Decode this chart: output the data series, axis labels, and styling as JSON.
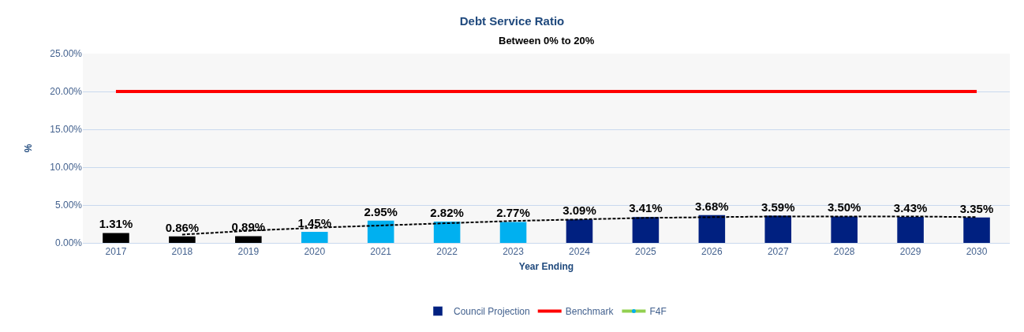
{
  "chart_data": {
    "type": "bar",
    "title": "Debt Service Ratio",
    "subtitle": "Between 0% to 20%",
    "xlabel": "Year Ending",
    "ylabel": "%",
    "categories": [
      "2017",
      "2018",
      "2019",
      "2020",
      "2021",
      "2022",
      "2023",
      "2024",
      "2025",
      "2026",
      "2027",
      "2028",
      "2029",
      "2030"
    ],
    "series": [
      {
        "name": "Council Projection",
        "color": "#002080",
        "colors": [
          "#000000",
          "#000000",
          "#000000",
          "#00b0f0",
          "#00b0f0",
          "#00b0f0",
          "#00b0f0",
          "#002080",
          "#002080",
          "#002080",
          "#002080",
          "#002080",
          "#002080",
          "#002080"
        ],
        "values": [
          1.31,
          0.86,
          0.89,
          1.45,
          2.95,
          2.82,
          2.77,
          3.09,
          3.41,
          3.68,
          3.59,
          3.5,
          3.43,
          3.35
        ],
        "value_labels": [
          "1.31%",
          "0.86%",
          "0.89%",
          "1.45%",
          "2.95%",
          "2.82%",
          "2.77%",
          "3.09%",
          "3.41%",
          "3.68%",
          "3.59%",
          "3.50%",
          "3.43%",
          "3.35%"
        ]
      },
      {
        "name": "Benchmark",
        "type": "line",
        "color": "#ff0000",
        "marker": "none",
        "values": [
          20,
          20,
          20,
          20,
          20,
          20,
          20,
          20,
          20,
          20,
          20,
          20,
          20,
          20
        ]
      },
      {
        "name": "F4F",
        "type": "line",
        "color": "#92d050",
        "marker": "circle",
        "values": [
          null,
          null,
          null,
          null,
          null,
          null,
          null,
          null,
          null,
          null,
          null,
          null,
          null,
          null
        ]
      },
      {
        "type": "line",
        "color": "#000000",
        "line_style": "dashed",
        "marker": "none",
        "values": [
          null,
          1.1,
          1.6,
          2.0,
          2.3,
          2.6,
          2.9,
          3.1,
          3.3,
          3.4,
          3.5,
          3.5,
          3.5,
          3.4
        ]
      }
    ],
    "ylim": [
      0,
      25
    ],
    "yticks": [
      {
        "value": 0,
        "label": "0.00%"
      },
      {
        "value": 5,
        "label": "5.00%"
      },
      {
        "value": 10,
        "label": "10.00%"
      },
      {
        "value": 15,
        "label": "15.00%"
      },
      {
        "value": 20,
        "label": "20.00%"
      },
      {
        "value": 25,
        "label": "25.00%"
      }
    ],
    "grid": "y",
    "legend": "bottom"
  }
}
